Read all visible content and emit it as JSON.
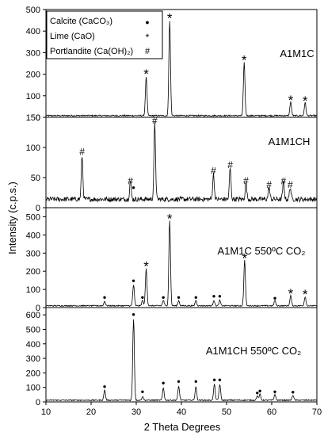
{
  "chart_data": {
    "type": "line",
    "xlabel": "2 Theta Degrees",
    "ylabel": "Intensity (c.p.s.)",
    "xlim": [
      10,
      70
    ],
    "xticks": [
      "10",
      "20",
      "30",
      "40",
      "50",
      "60",
      "70"
    ],
    "legend": {
      "placement": "top-left",
      "entries": [
        {
          "label": "Calcite (CaCO₃)",
          "symbol": "●"
        },
        {
          "label": "Lime (CaO)",
          "symbol": "*"
        },
        {
          "label": "Portlandite (Ca(OH)₂)",
          "symbol": "#"
        }
      ]
    },
    "panels": [
      {
        "name": "A1M1C",
        "ylim": [
          0,
          500
        ],
        "yticks": [
          "0",
          "100",
          "200",
          "300",
          "400",
          "500"
        ],
        "baseline": 8,
        "noise": 3,
        "peaks": [
          [
            32.2,
            180
          ],
          [
            37.4,
            440
          ],
          [
            53.9,
            245
          ],
          [
            64.2,
            65
          ],
          [
            67.4,
            60
          ]
        ],
        "markers": [
          {
            "x": 32.2,
            "y": 220,
            "symbol": "*"
          },
          {
            "x": 37.4,
            "y": 480,
            "symbol": "*"
          },
          {
            "x": 53.9,
            "y": 285,
            "symbol": "*"
          },
          {
            "x": 64.2,
            "y": 100,
            "symbol": "*"
          },
          {
            "x": 67.4,
            "y": 95,
            "symbol": "*"
          }
        ]
      },
      {
        "name": "A1M1CH",
        "ylim": [
          0,
          150
        ],
        "yticks": [
          "0",
          "50",
          "100",
          "150"
        ],
        "baseline": 14,
        "noise": 4,
        "peaks": [
          [
            18.0,
            72
          ],
          [
            28.7,
            30
          ],
          [
            34.1,
            125
          ],
          [
            47.1,
            42
          ],
          [
            50.8,
            52
          ],
          [
            54.3,
            28
          ],
          [
            59.4,
            20
          ],
          [
            62.6,
            28
          ],
          [
            64.1,
            20
          ]
        ],
        "markers": [
          {
            "x": 18.0,
            "y": 93,
            "symbol": "#"
          },
          {
            "x": 28.7,
            "y": 44,
            "symbol": "#"
          },
          {
            "x": 29.4,
            "y": 34,
            "symbol": "●"
          },
          {
            "x": 34.1,
            "y": 145,
            "symbol": "#"
          },
          {
            "x": 47.1,
            "y": 61,
            "symbol": "#"
          },
          {
            "x": 50.8,
            "y": 71,
            "symbol": "#"
          },
          {
            "x": 54.3,
            "y": 45,
            "symbol": "#"
          },
          {
            "x": 59.4,
            "y": 38,
            "symbol": "#"
          },
          {
            "x": 62.6,
            "y": 44,
            "symbol": "#"
          },
          {
            "x": 64.1,
            "y": 38,
            "symbol": "#"
          }
        ]
      },
      {
        "name": "A1M1C 550ºC CO₂",
        "ylim": [
          0,
          550
        ],
        "yticks": [
          "0",
          "100",
          "200",
          "300",
          "400",
          "500"
        ],
        "baseline": 10,
        "noise": 3,
        "peaks": [
          [
            23.0,
            25
          ],
          [
            29.4,
            115
          ],
          [
            31.4,
            30
          ],
          [
            32.2,
            205
          ],
          [
            36.0,
            30
          ],
          [
            37.4,
            470
          ],
          [
            39.4,
            28
          ],
          [
            43.2,
            30
          ],
          [
            47.2,
            30
          ],
          [
            48.5,
            30
          ],
          [
            54.0,
            250
          ],
          [
            60.7,
            30
          ],
          [
            64.2,
            55
          ],
          [
            67.4,
            50
          ]
        ],
        "markers": [
          {
            "x": 23.0,
            "y": 60,
            "symbol": "●"
          },
          {
            "x": 29.4,
            "y": 150,
            "symbol": "●"
          },
          {
            "x": 31.4,
            "y": 60,
            "symbol": "●"
          },
          {
            "x": 32.2,
            "y": 250,
            "symbol": "*"
          },
          {
            "x": 36.0,
            "y": 60,
            "symbol": "●"
          },
          {
            "x": 37.4,
            "y": 512,
            "symbol": "*"
          },
          {
            "x": 39.4,
            "y": 60,
            "symbol": "●"
          },
          {
            "x": 43.2,
            "y": 60,
            "symbol": "●"
          },
          {
            "x": 47.2,
            "y": 65,
            "symbol": "●"
          },
          {
            "x": 48.5,
            "y": 65,
            "symbol": "●"
          },
          {
            "x": 54.0,
            "y": 295,
            "symbol": "*"
          },
          {
            "x": 60.7,
            "y": 55,
            "symbol": "●"
          },
          {
            "x": 64.2,
            "y": 100,
            "symbol": "*"
          },
          {
            "x": 67.4,
            "y": 95,
            "symbol": "*"
          }
        ]
      },
      {
        "name": "A1M1CH 550ºC CO₂",
        "ylim": [
          0,
          650
        ],
        "yticks": [
          "0",
          "100",
          "200",
          "300",
          "400",
          "500",
          "600"
        ],
        "baseline": 12,
        "noise": 4,
        "peaks": [
          [
            23.0,
            70
          ],
          [
            29.4,
            560
          ],
          [
            31.4,
            25
          ],
          [
            36.0,
            85
          ],
          [
            39.4,
            95
          ],
          [
            43.2,
            95
          ],
          [
            47.3,
            110
          ],
          [
            48.5,
            110
          ],
          [
            56.8,
            30
          ],
          [
            57.4,
            40
          ],
          [
            60.7,
            40
          ],
          [
            64.7,
            35
          ]
        ],
        "markers": [
          {
            "x": 23.0,
            "y": 110,
            "symbol": "●"
          },
          {
            "x": 29.4,
            "y": 605,
            "symbol": "●"
          },
          {
            "x": 31.4,
            "y": 75,
            "symbol": "●"
          },
          {
            "x": 36.0,
            "y": 135,
            "symbol": "●"
          },
          {
            "x": 39.4,
            "y": 145,
            "symbol": "●"
          },
          {
            "x": 43.2,
            "y": 145,
            "symbol": "●"
          },
          {
            "x": 47.3,
            "y": 155,
            "symbol": "●"
          },
          {
            "x": 48.5,
            "y": 155,
            "symbol": "●"
          },
          {
            "x": 56.8,
            "y": 65,
            "symbol": "●"
          },
          {
            "x": 57.4,
            "y": 80,
            "symbol": "●"
          },
          {
            "x": 60.7,
            "y": 75,
            "symbol": "●"
          },
          {
            "x": 64.7,
            "y": 70,
            "symbol": "●"
          }
        ]
      }
    ]
  }
}
